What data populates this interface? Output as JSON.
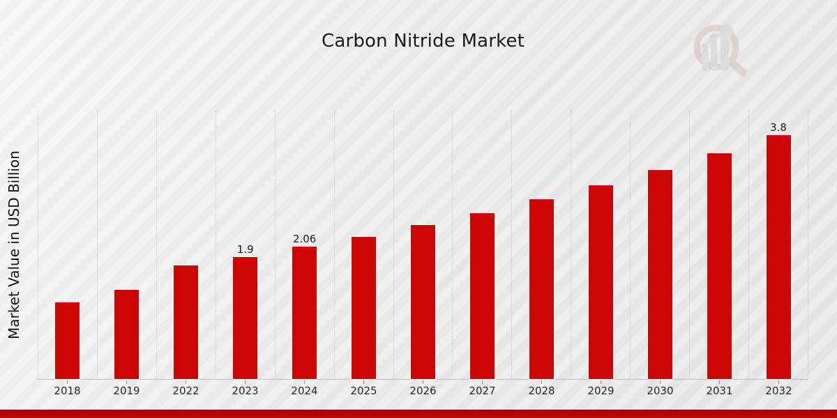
{
  "title": "Carbon Nitride Market",
  "ylabel": "Market Value in USD Billion",
  "colors": {
    "bar": "#cc0605",
    "footer": "#c10505",
    "footer_edge": "#8f0d0d",
    "gridline": "#c6c6c6",
    "axis_line": "#bdbdbd",
    "background": "#ececec",
    "title_text": "#1a1a1a",
    "tick_text": "#262626",
    "watermark_ring": "#d9b8b8",
    "watermark_gray": "#cfcfcf"
  },
  "watermark": {
    "icon": "magnifier-bar-chart-watermark-icon"
  },
  "chart_data": {
    "type": "bar",
    "title": "Carbon Nitride Market",
    "xlabel": "",
    "ylabel": "Market Value in USD Billion",
    "categories": [
      "2018",
      "2019",
      "2022",
      "2023",
      "2024",
      "2025",
      "2026",
      "2027",
      "2028",
      "2029",
      "2030",
      "2031",
      "2032"
    ],
    "values": [
      1.2,
      1.39,
      1.77,
      1.9,
      2.06,
      2.22,
      2.4,
      2.59,
      2.8,
      3.02,
      3.26,
      3.52,
      3.8
    ],
    "data_labels": [
      "",
      "",
      "",
      "1.9",
      "2.06",
      "",
      "",
      "",
      "",
      "",
      "",
      "",
      "3.8"
    ],
    "unit": "USD Billion",
    "ylim": [
      0,
      4.2
    ],
    "grid": "vertical-dotted",
    "legend": "none",
    "bar_color": "#cc0605"
  }
}
